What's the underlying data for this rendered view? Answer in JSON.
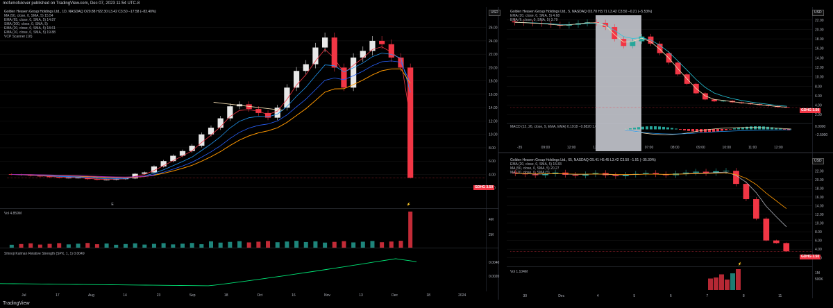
{
  "header": {
    "published": "mofumofulover published on TradingView.com, Dec 07, 2023 11:54 UTC-8"
  },
  "footer": {
    "logo": "TradingView"
  },
  "colors": {
    "up": "#e8e8e8",
    "up_green": "#26a69a",
    "down": "#f23645",
    "grid": "#1a1a1a",
    "ma50": "#ff9800",
    "ema65": "#2962ff",
    "ema20": "#2196f3",
    "ema10": "#f23645",
    "sma200": "#9c27b0",
    "kalman": "#00e676",
    "ema_teal": "#26c6da"
  },
  "panels": {
    "daily": {
      "legend": [
        "Golden Heaven Group Holdings Ltd., 1D, NASDAQ  O20.88  H22.30  L3.42  C3.50  −17.58 (−83.40%)",
        "MA (50, close, 0, SMA, 5)  15.54",
        "EMA (65, close, 0, SMA, 5)  14.87",
        "SMA (200, close, 0, SMA, 5)",
        "EMA (20, close, 0, SMA, 5)  18.61",
        "EMA (10, close, 0, SMA, 5)  19.88",
        "VCP Scanner (18)"
      ],
      "currency": "USD",
      "price_ticks": [
        "26.00",
        "24.00",
        "22.00",
        "20.00",
        "18.00",
        "16.00",
        "14.00",
        "12.00",
        "10.00",
        "8.00",
        "6.00",
        "4.00",
        "2.00"
      ],
      "tag": "GDHG  3.50",
      "vol_legend": "Vol  4.859M",
      "vol_ticks": [
        "4M",
        "2M"
      ],
      "kalman_legend": "Shinoji Kalman Relative Strength (SPX, 1, 1)  0.0049",
      "kalman_ticks": [
        "0.0040",
        "0.0020"
      ],
      "time_ticks": [
        "Jul",
        "17",
        "Aug",
        "14",
        "23",
        "Sep",
        "18",
        "Oct",
        "16",
        "Nov",
        "13",
        "Dec",
        "18",
        "2024"
      ],
      "markers": [
        "E",
        "⚡"
      ]
    },
    "m5": {
      "legend": [
        "Golden Heaven Group Holdings Ltd., 5, NASDAQ  O3.70  H3.71  L3.42  C3.50  −0.21 (−5.53%)",
        "EMA (20, close, 0, SMA, 5)  4.68",
        "EMA (6, close, 0, SMA, 5)  3.79"
      ],
      "currency": "USD",
      "price_ticks": [
        "22.00",
        "20.00",
        "18.00",
        "16.00",
        "14.00",
        "12.00",
        "10.00",
        "8.00",
        "6.00",
        "4.00",
        "2.00"
      ],
      "tag": "GDHG  3.50",
      "macd_legend": "MACD (12, 26, close, 9, EMA, EMA)  0.1918  −0.8820  1.07",
      "macd_ticks": [
        "0.0000",
        "−2.5000"
      ],
      "time_ticks": [
        "-35",
        "09:00",
        "12:00",
        "13:00",
        "7",
        "07:00",
        "08:00",
        "09:00",
        "10:00",
        "11:00",
        "12:00"
      ]
    },
    "m65": {
      "legend": [
        "Golden Heaven Group Holdings Ltd., 65, NASDAQ  O5.41  H5.45  L3.42  C3.50  −1.91 (−35.30%)",
        "EMA (20, close, 0, SMA, 5)  15.83",
        "MA (50, close, 0, SMA, 5)  20.27",
        "MA (10, close, 0, SMA, 5)"
      ],
      "currency": "USD",
      "price_ticks": [
        "22.00",
        "20.00",
        "18.00",
        "16.00",
        "14.00",
        "12.00",
        "10.00",
        "8.00",
        "6.00",
        "4.00",
        "2.00"
      ],
      "tag": "GDHG  3.50",
      "vol_legend": "Vol  1.104M",
      "vol_ticks": [
        "1M",
        "500K"
      ],
      "time_ticks": [
        "30",
        "Dec",
        "4",
        "5",
        "6",
        "7",
        "8",
        "11"
      ]
    }
  },
  "chart_data": [
    {
      "type": "candlestick",
      "title": "Golden Heaven Group Holdings Ltd., 1D, NASDAQ",
      "ylim": [
        0,
        27
      ],
      "x": [
        "Jul",
        "17",
        "Aug",
        "14",
        "23",
        "Sep",
        "18",
        "Oct",
        "16",
        "Nov",
        "13",
        "Dec",
        "18",
        "2024"
      ],
      "close_path": [
        4.0,
        3.9,
        3.8,
        3.7,
        3.6,
        3.5,
        3.5,
        3.5,
        3.3,
        3.2,
        3.2,
        3.3,
        3.4,
        4.1,
        4.3,
        5.2,
        6.0,
        6.8,
        7.5,
        8.3,
        10.0,
        11.0,
        12.4,
        14.2,
        14.5,
        13.8,
        13.2,
        12.5,
        14.0,
        17.0,
        19.5,
        20.5,
        23.0,
        24.5,
        20.0,
        17.0,
        21.5,
        22.5,
        24.0,
        23.5,
        21.5,
        20.0,
        3.5
      ],
      "series": [
        {
          "name": "MA (50, close, 0, SMA, 5)",
          "last": 15.54
        },
        {
          "name": "EMA (65, close, 0, SMA, 5)",
          "last": 14.87
        },
        {
          "name": "EMA (20, close, 0, SMA, 5)",
          "last": 18.61
        },
        {
          "name": "EMA (10, close, 0, SMA, 5)",
          "last": 19.88
        }
      ],
      "last_close": 3.5
    },
    {
      "type": "candlestick",
      "title": "Golden Heaven Group Holdings Ltd., 5, NASDAQ",
      "ylim": [
        1,
        23
      ],
      "close_path": [
        21.5,
        21.4,
        21.3,
        21.2,
        21.0,
        20.8,
        21.0,
        21.3,
        21.5,
        21.4,
        20.5,
        18.0,
        16.5,
        17.5,
        18.5,
        17.0,
        15.0,
        13.0,
        10.5,
        8.5,
        6.5,
        5.2,
        4.8,
        4.9,
        4.6,
        4.4,
        4.2,
        4.0,
        3.8,
        3.6,
        3.5
      ],
      "last_close": 3.5
    },
    {
      "type": "candlestick",
      "title": "Golden Heaven Group Holdings Ltd., 65, NASDAQ",
      "ylim": [
        1,
        23
      ],
      "close_path": [
        21.4,
        21.2,
        21.0,
        21.3,
        21.6,
        21.1,
        20.9,
        21.2,
        21.5,
        21.0,
        20.8,
        21.1,
        21.3,
        21.5,
        21.2,
        21.0,
        21.4,
        21.6,
        21.8,
        21.5,
        21.9,
        22.0,
        19.0,
        15.5,
        11.0,
        6.0,
        5.4,
        3.5
      ],
      "last_close": 3.5
    }
  ]
}
